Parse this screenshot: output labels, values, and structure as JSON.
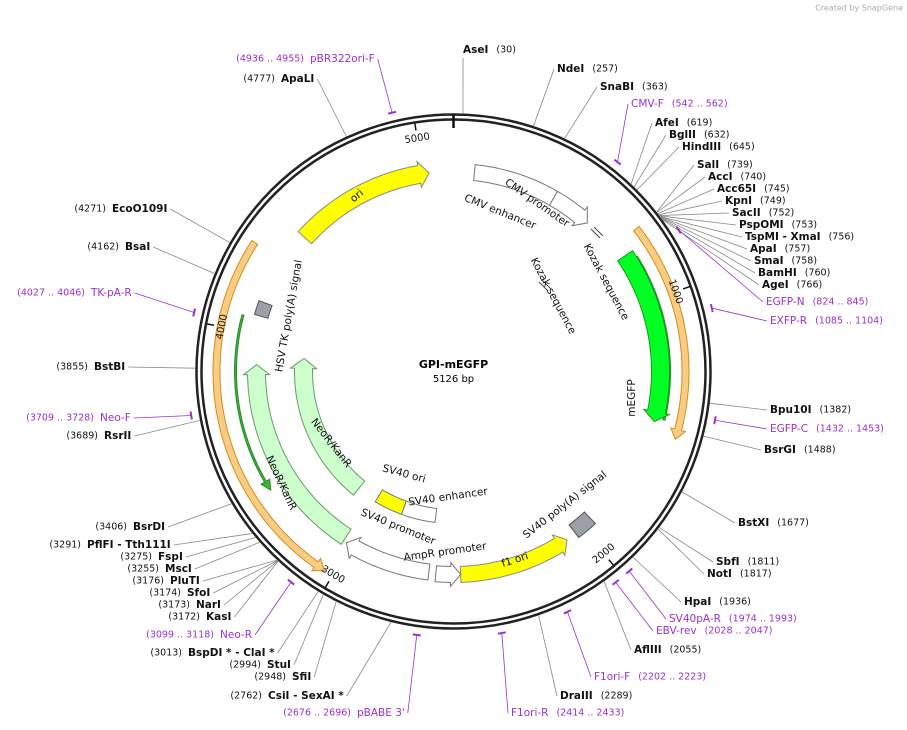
{
  "watermark": "Created by SnapGene",
  "plasmid": {
    "name": "GPI-mEGFP",
    "size": "5126 bp"
  },
  "ticks": [
    1000,
    2000,
    3000,
    4000,
    5000
  ],
  "sites": [
    {
      "name": "AseI",
      "pos": "(30)"
    },
    {
      "name": "NdeI",
      "pos": "(257)"
    },
    {
      "name": "SnaBI",
      "pos": "(363)"
    },
    {
      "name": "AfeI",
      "pos": "(619)"
    },
    {
      "name": "BglII",
      "pos": "(632)"
    },
    {
      "name": "HindIII",
      "pos": "(645)"
    },
    {
      "name": "SalI",
      "pos": "(739)"
    },
    {
      "name": "AccI",
      "pos": "(740)"
    },
    {
      "name": "Acc65I",
      "pos": "(745)"
    },
    {
      "name": "KpnI",
      "pos": "(749)"
    },
    {
      "name": "SacII",
      "pos": "(752)"
    },
    {
      "name": "PspOMI",
      "pos": "(753)"
    },
    {
      "name": "TspMI  - XmaI",
      "pos": "(756)"
    },
    {
      "name": "ApaI",
      "pos": "(757)"
    },
    {
      "name": "SmaI",
      "pos": "(758)"
    },
    {
      "name": "BamHI",
      "pos": "(760)"
    },
    {
      "name": "AgeI",
      "pos": "(766)"
    },
    {
      "name": "Bpu10I",
      "pos": "(1382)"
    },
    {
      "name": "BsrGI",
      "pos": "(1488)"
    },
    {
      "name": "BstXI",
      "pos": "(1677)"
    },
    {
      "name": "SbfI",
      "pos": "(1811)"
    },
    {
      "name": "NotI",
      "pos": "(1817)"
    },
    {
      "name": "HpaI",
      "pos": "(1936)"
    },
    {
      "name": "AflIII",
      "pos": "(2055)"
    },
    {
      "name": "DraIII",
      "pos": "(2289)"
    },
    {
      "name": "CsiI  - SexAI *",
      "pos": "(2762)"
    },
    {
      "name": "SfiI",
      "pos": "(2948)"
    },
    {
      "name": "StuI",
      "pos": "(2994)"
    },
    {
      "name": "BspDI *  - ClaI *",
      "pos": "(3013)"
    },
    {
      "name": "KasI",
      "pos": "(3172)"
    },
    {
      "name": "NarI",
      "pos": "(3173)"
    },
    {
      "name": "SfoI",
      "pos": "(3174)"
    },
    {
      "name": "PluTI",
      "pos": "(3176)"
    },
    {
      "name": "MscI",
      "pos": "(3255)"
    },
    {
      "name": "FspI",
      "pos": "(3275)"
    },
    {
      "name": "PflFI  - Tth111I",
      "pos": "(3291)"
    },
    {
      "name": "BsrDI",
      "pos": "(3406)"
    },
    {
      "name": "RsrII",
      "pos": "(3689)"
    },
    {
      "name": "BstBI",
      "pos": "(3855)"
    },
    {
      "name": "BsaI",
      "pos": "(4162)"
    },
    {
      "name": "EcoO109I",
      "pos": "(4271)"
    },
    {
      "name": "ApaLI",
      "pos": "(4777)"
    }
  ],
  "primers": [
    {
      "name": "CMV-F",
      "range": "(542 .. 562)"
    },
    {
      "name": "EGFP-N",
      "range": "(824 .. 845)"
    },
    {
      "name": "EXFP-R",
      "range": "(1085 .. 1104)"
    },
    {
      "name": "EGFP-C",
      "range": "(1432 .. 1453)"
    },
    {
      "name": "SV40pA-R",
      "range": "(1974 .. 1993)"
    },
    {
      "name": "EBV-rev",
      "range": "(2028 .. 2047)"
    },
    {
      "name": "F1ori-F",
      "range": "(2202 .. 2223)"
    },
    {
      "name": "F1ori-R",
      "range": "(2414 .. 2433)"
    },
    {
      "name": "pBABE 3'",
      "range": "(2676 .. 2696)"
    },
    {
      "name": "Neo-R",
      "range": "(3099 .. 3118)"
    },
    {
      "name": "Neo-F",
      "range": "(3709 .. 3728)"
    },
    {
      "name": "TK-pA-R",
      "range": "(4027 .. 4046)"
    },
    {
      "name": "pBR322ori-F",
      "range": "(4936 .. 4955)"
    }
  ],
  "features": [
    "ori",
    "CMV enhancer",
    "CMV promoter",
    "Kozak sequence",
    "Kozak sequence",
    "mEGFP",
    "SV40 poly(A) signal",
    "f1 ori",
    "AmpR promoter",
    "SV40 promoter",
    "SV40 enhancer",
    "SV40 ori",
    "NeoR/KanR",
    "NeoR/KanR",
    "HSV TK poly(A) signal"
  ]
}
